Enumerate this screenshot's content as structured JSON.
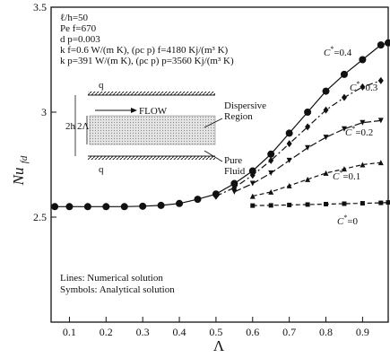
{
  "chart_data": {
    "type": "line",
    "title": "",
    "xlabel": "Λ",
    "ylabel": "Nu fd",
    "ylabel_main": "Nu",
    "ylabel_sub": "fd",
    "xlim": [
      0.05,
      0.97
    ],
    "ylim": [
      2.0,
      3.5
    ],
    "x_ticks": [
      0.1,
      0.2,
      0.3,
      0.4,
      0.5,
      0.6,
      0.7,
      0.8,
      0.9
    ],
    "x_tick_labels": [
      "0.1",
      "0.2",
      "0.3",
      "0.4",
      "0.5",
      "0.6",
      "0.7",
      "0.8",
      "0.9"
    ],
    "y_ticks": [
      2.5,
      3.0,
      3.5
    ],
    "y_tick_labels": [
      "2.5",
      "3",
      "3.5"
    ],
    "grid": false,
    "parameters": [
      "ℓ/h=50",
      "Pe f=670",
      "d p=0.003",
      "k f=0.6 W/(m K), (ρc p) f=4180 Kj/(m³ K)",
      "k p=391 W/(m K), (ρc p) p=3560 Kj/(m³ K)"
    ],
    "notes": [
      "Lines: Numerical solution",
      "Symbols: Analytical solution"
    ],
    "inset_labels": {
      "q_top": "q",
      "q_bottom": "q",
      "flow": "FLOW",
      "dispersive_1": "Dispersive",
      "dispersive_2": "Region",
      "pure_1": "Pure",
      "pure_2": "Fluid",
      "height_outer": "2h",
      "height_inner": "2Λ"
    },
    "series": [
      {
        "name": "C*=0.4",
        "label_main": "C",
        "label_rest": "=0.4",
        "marker": "circle",
        "x": [
          0.06,
          0.1,
          0.15,
          0.2,
          0.25,
          0.3,
          0.35,
          0.4,
          0.45,
          0.5,
          0.55,
          0.6,
          0.65,
          0.7,
          0.75,
          0.8,
          0.85,
          0.9,
          0.95,
          0.97
        ],
        "y": [
          2.55,
          2.55,
          2.55,
          2.55,
          2.55,
          2.552,
          2.556,
          2.565,
          2.585,
          2.61,
          2.66,
          2.72,
          2.8,
          2.9,
          3.0,
          3.1,
          3.18,
          3.25,
          3.32,
          3.33
        ]
      },
      {
        "name": "C*=0.3",
        "label_main": "C",
        "label_rest": "=0.3",
        "marker": "diamond",
        "x": [
          0.5,
          0.55,
          0.6,
          0.65,
          0.7,
          0.75,
          0.8,
          0.85,
          0.9,
          0.95
        ],
        "y": [
          2.6,
          2.64,
          2.7,
          2.77,
          2.85,
          2.93,
          3.01,
          3.07,
          3.12,
          3.15
        ]
      },
      {
        "name": "C*=0.2",
        "label_main": "C",
        "label_rest": "=0.2",
        "marker": "triangle-down",
        "x": [
          0.55,
          0.6,
          0.65,
          0.7,
          0.75,
          0.8,
          0.85,
          0.9,
          0.95
        ],
        "y": [
          2.62,
          2.66,
          2.71,
          2.77,
          2.83,
          2.88,
          2.92,
          2.95,
          2.96
        ]
      },
      {
        "name": "C*=0.1",
        "label_main": "C",
        "label_rest": "=0.1",
        "marker": "triangle-up",
        "x": [
          0.6,
          0.65,
          0.7,
          0.75,
          0.8,
          0.85,
          0.9,
          0.95
        ],
        "y": [
          2.6,
          2.62,
          2.65,
          2.68,
          2.71,
          2.73,
          2.75,
          2.76
        ]
      },
      {
        "name": "C*=0",
        "label_main": "C",
        "label_rest": "=0",
        "marker": "square",
        "x": [
          0.6,
          0.65,
          0.7,
          0.75,
          0.8,
          0.85,
          0.9,
          0.95,
          0.97
        ],
        "y": [
          2.555,
          2.556,
          2.558,
          2.56,
          2.562,
          2.564,
          2.566,
          2.568,
          2.57
        ]
      }
    ]
  }
}
